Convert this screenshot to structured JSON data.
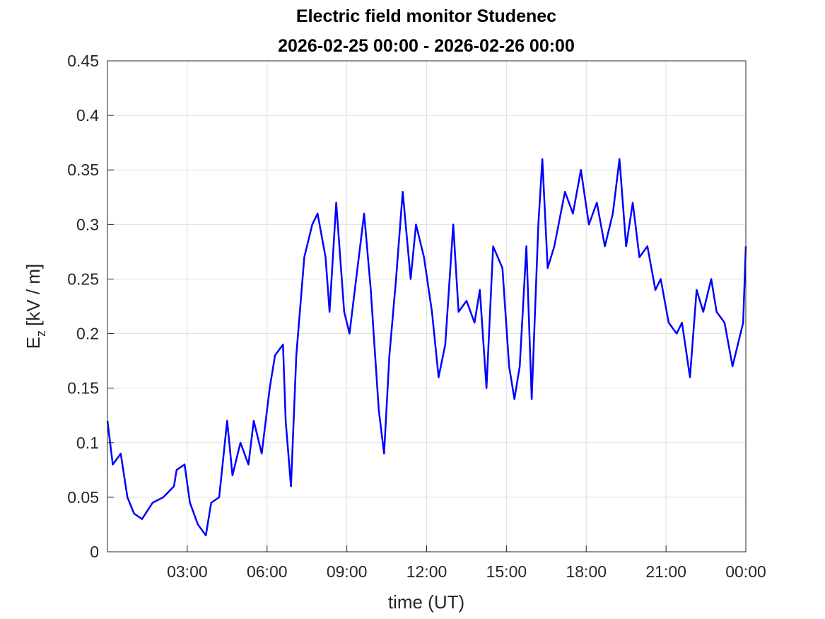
{
  "chart_data": {
    "type": "line",
    "title": "Electric field monitor Studenec",
    "subtitle": "2026-02-25 00:00 - 2026-02-26 00:00",
    "xlabel": "time (UT)",
    "ylabel": "E",
    "ylabel_subscript": "z",
    "ylabel_unit": "[kV / m]",
    "xlim": [
      0,
      24
    ],
    "xticks": [
      {
        "value": 3,
        "label": "03:00"
      },
      {
        "value": 6,
        "label": "06:00"
      },
      {
        "value": 9,
        "label": "09:00"
      },
      {
        "value": 12,
        "label": "12:00"
      },
      {
        "value": 15,
        "label": "15:00"
      },
      {
        "value": 18,
        "label": "18:00"
      },
      {
        "value": 21,
        "label": "21:00"
      },
      {
        "value": 24,
        "label": "00:00"
      }
    ],
    "ylim": [
      0,
      0.45
    ],
    "yticks": [
      0,
      0.05,
      0.1,
      0.15,
      0.2,
      0.25,
      0.3,
      0.35,
      0.4,
      0.45
    ],
    "grid": true,
    "x": [
      0,
      0.2,
      0.5,
      0.75,
      1.0,
      1.3,
      1.7,
      2.1,
      2.5,
      2.6,
      2.9,
      3.1,
      3.4,
      3.7,
      3.9,
      4.2,
      4.5,
      4.7,
      5.0,
      5.3,
      5.5,
      5.8,
      6.1,
      6.3,
      6.6,
      6.7,
      6.9,
      7.1,
      7.4,
      7.7,
      7.9,
      8.2,
      8.35,
      8.6,
      8.9,
      9.1,
      9.4,
      9.65,
      9.9,
      10.2,
      10.4,
      10.6,
      10.85,
      11.1,
      11.4,
      11.6,
      11.9,
      12.2,
      12.45,
      12.7,
      13.0,
      13.2,
      13.5,
      13.8,
      14.0,
      14.25,
      14.5,
      14.85,
      15.1,
      15.3,
      15.5,
      15.75,
      15.95,
      16.2,
      16.35,
      16.55,
      16.8,
      17.2,
      17.5,
      17.8,
      18.1,
      18.4,
      18.7,
      19.0,
      19.25,
      19.5,
      19.75,
      20.0,
      20.3,
      20.6,
      20.8,
      21.1,
      21.4,
      21.6,
      21.9,
      22.15,
      22.4,
      22.7,
      22.9,
      23.2,
      23.5,
      23.7,
      23.9,
      24.0
    ],
    "series": [
      {
        "color": "#0000ff",
        "values": [
          0.12,
          0.08,
          0.09,
          0.05,
          0.035,
          0.03,
          0.045,
          0.05,
          0.06,
          0.075,
          0.08,
          0.045,
          0.025,
          0.015,
          0.045,
          0.05,
          0.12,
          0.07,
          0.1,
          0.08,
          0.12,
          0.09,
          0.15,
          0.18,
          0.19,
          0.12,
          0.06,
          0.18,
          0.27,
          0.3,
          0.31,
          0.27,
          0.22,
          0.32,
          0.22,
          0.2,
          0.26,
          0.31,
          0.24,
          0.13,
          0.09,
          0.18,
          0.25,
          0.33,
          0.25,
          0.3,
          0.27,
          0.22,
          0.16,
          0.19,
          0.3,
          0.22,
          0.23,
          0.21,
          0.24,
          0.15,
          0.28,
          0.26,
          0.17,
          0.14,
          0.17,
          0.28,
          0.14,
          0.3,
          0.36,
          0.26,
          0.28,
          0.33,
          0.31,
          0.35,
          0.3,
          0.32,
          0.28,
          0.31,
          0.36,
          0.28,
          0.32,
          0.27,
          0.28,
          0.24,
          0.25,
          0.21,
          0.2,
          0.21,
          0.16,
          0.24,
          0.22,
          0.25,
          0.22,
          0.21,
          0.17,
          0.19,
          0.21,
          0.28
        ]
      }
    ]
  }
}
